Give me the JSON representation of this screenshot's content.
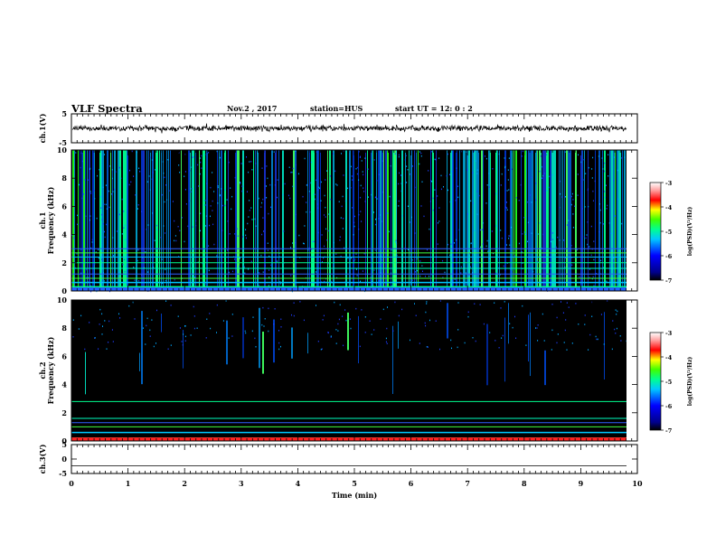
{
  "header": {
    "title": "VLF Spectra",
    "date": "Nov.2 , 2017",
    "station": "station=HUS",
    "start": "start UT = 12: 0 : 2"
  },
  "chart_data": [
    {
      "type": "line",
      "panel": "ch1-waveform",
      "ylabel": "ch.1(V)",
      "ylim": [
        -5,
        5
      ],
      "yticks": [
        "5",
        "-5"
      ],
      "xlim": [
        0,
        10
      ],
      "series": [
        {
          "values": "noisy waveform centred near 0 V, amplitude ~ ±1 V"
        }
      ]
    },
    {
      "type": "heatmap",
      "panel": "ch1-spectrogram",
      "ylabel": "ch.1 Frequency (kHz)",
      "ylim": [
        0,
        10
      ],
      "yticks": [
        "0",
        "2",
        "4",
        "6",
        "8",
        "10"
      ],
      "xlim": [
        0,
        10
      ],
      "colorbar": {
        "label": "log(PSD)(V²/Hz)",
        "range": [
          -7,
          -3
        ],
        "ticks": [
          "-3",
          "-4",
          "-5",
          "-6",
          "-7"
        ]
      },
      "horizontal_lines_khz": [
        0.3,
        0.6,
        0.9,
        1.2,
        1.6,
        2.0,
        2.4,
        2.7,
        3.0
      ]
    },
    {
      "type": "heatmap",
      "panel": "ch2-spectrogram",
      "ylabel": "ch.2 Frequency (kHz)",
      "ylim": [
        0,
        10
      ],
      "yticks": [
        "0",
        "2",
        "4",
        "6",
        "8",
        "10"
      ],
      "xlim": [
        0,
        10
      ],
      "colorbar": {
        "label": "log(PSD)(V²/Hz)",
        "range": [
          -7,
          -3
        ],
        "ticks": [
          "-3",
          "-4",
          "-5",
          "-6",
          "-7"
        ]
      },
      "horizontal_lines_khz": [
        0.2,
        0.6,
        1.0,
        1.3,
        1.6,
        2.8
      ]
    },
    {
      "type": "line",
      "panel": "ch3-waveform",
      "ylabel": "ch.3(V)",
      "ylim": [
        -5,
        5
      ],
      "yticks": [
        "5",
        "0",
        "-5"
      ],
      "xlim": [
        0,
        10
      ],
      "series": [
        {
          "values": "flat line at about -2.3 V"
        }
      ]
    }
  ],
  "xaxis": {
    "label": "Time (min)",
    "ticks": [
      "0",
      "1",
      "2",
      "3",
      "4",
      "5",
      "6",
      "7",
      "8",
      "9",
      "10"
    ]
  }
}
